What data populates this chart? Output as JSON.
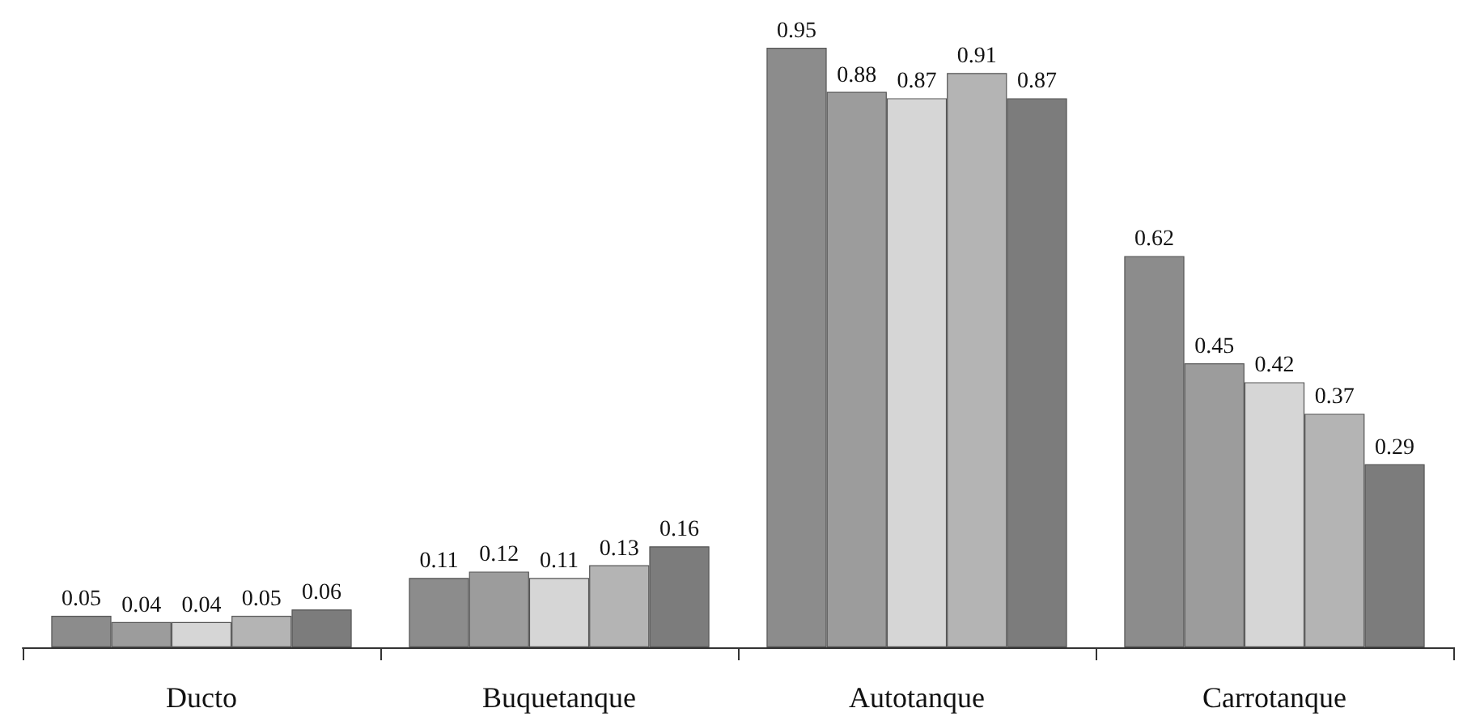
{
  "chart_data": {
    "type": "bar",
    "categories": [
      "Ducto",
      "Buquetanque",
      "Autotanque",
      "Carrotanque"
    ],
    "series": [
      {
        "color": "#8c8c8c",
        "values": [
          0.05,
          0.11,
          0.95,
          0.62
        ]
      },
      {
        "color": "#9c9c9c",
        "values": [
          0.04,
          0.12,
          0.88,
          0.45
        ]
      },
      {
        "color": "#d6d6d6",
        "values": [
          0.04,
          0.11,
          0.87,
          0.42
        ]
      },
      {
        "color": "#b4b4b4",
        "values": [
          0.05,
          0.13,
          0.91,
          0.37
        ]
      },
      {
        "color": "#7c7c7c",
        "values": [
          0.06,
          0.16,
          0.87,
          0.29
        ]
      }
    ],
    "data_labels": true
  }
}
